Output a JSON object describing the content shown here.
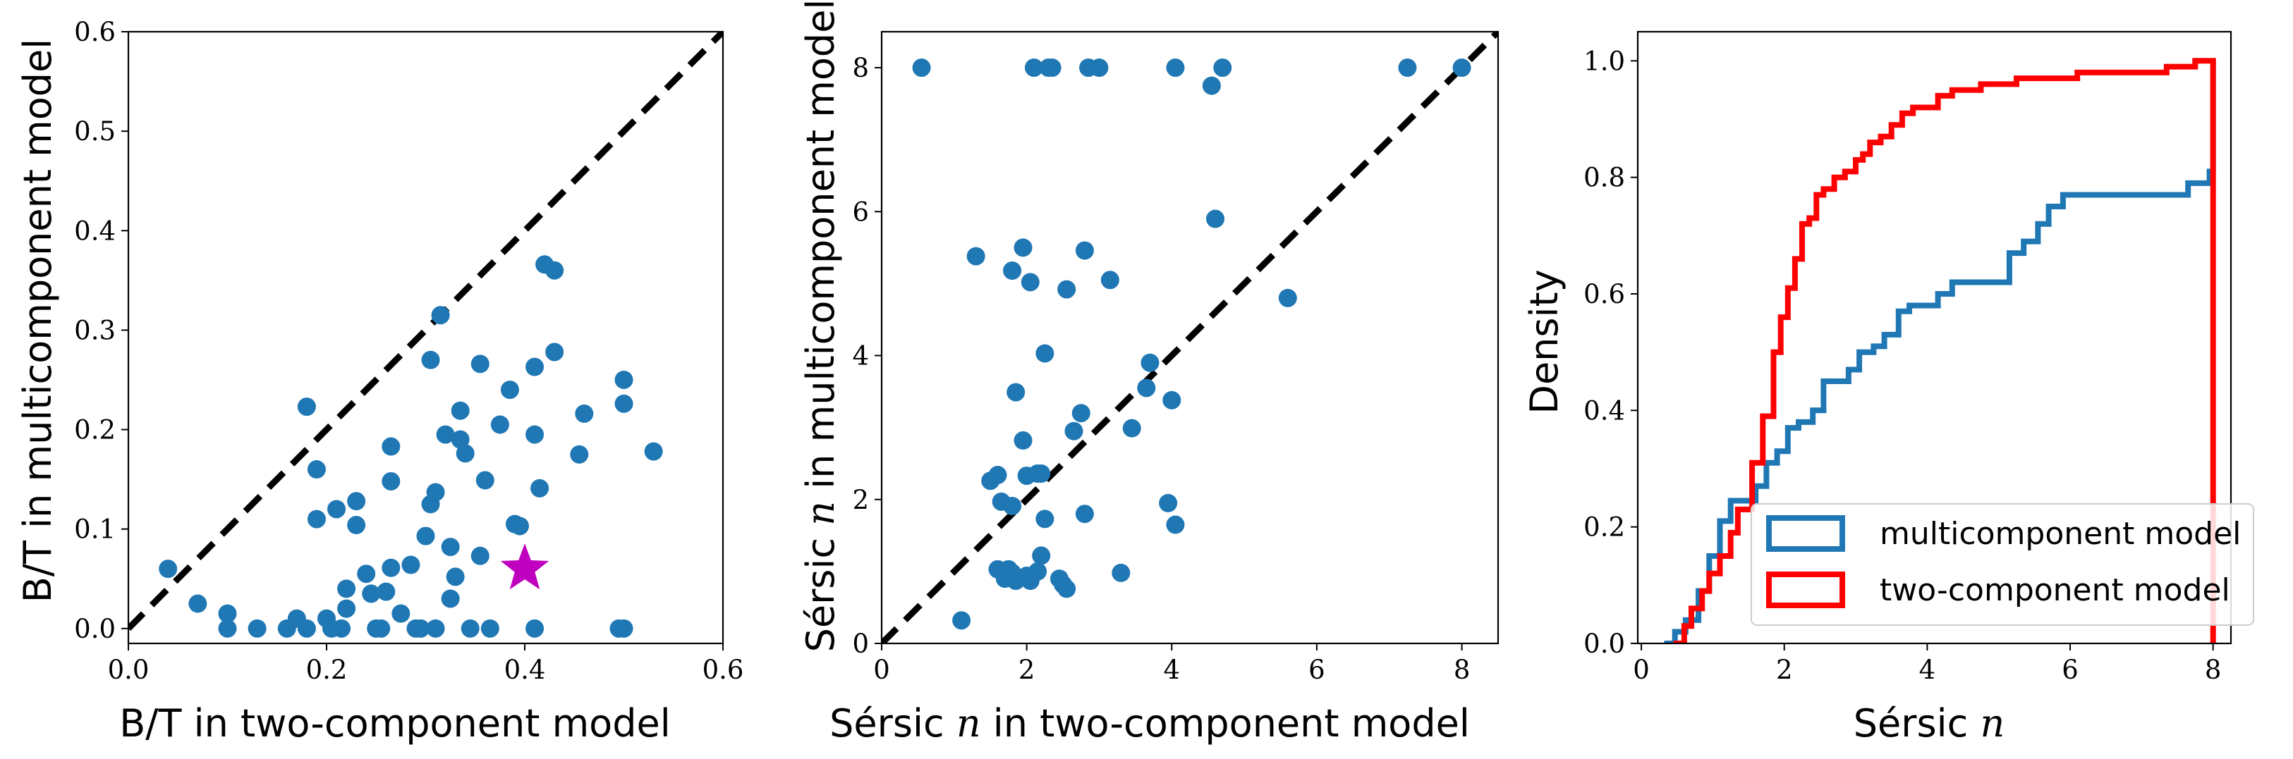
{
  "colors": {
    "point": "#1f77b4",
    "star": "#bf00bf",
    "multi": "#1f77b4",
    "two": "#ff0000",
    "identity": "#000000"
  },
  "chart_data": [
    {
      "type": "scatter",
      "xlabel": "B/T in two-component model",
      "ylabel": "B/T in multicomponent model",
      "xlim": [
        0.0,
        0.6
      ],
      "ylim": [
        -0.015,
        0.6
      ],
      "xticks": [
        "0.0",
        "0.2",
        "0.4",
        "0.6"
      ],
      "yticks": [
        "0.0",
        "0.1",
        "0.2",
        "0.3",
        "0.4",
        "0.5",
        "0.6"
      ],
      "identity_line": true,
      "series": [
        {
          "marker": "circle",
          "points": [
            [
              0.04,
              0.06
            ],
            [
              0.07,
              0.025
            ],
            [
              0.1,
              0.015
            ],
            [
              0.1,
              0.0
            ],
            [
              0.13,
              0.0
            ],
            [
              0.16,
              0.0
            ],
            [
              0.17,
              0.01
            ],
            [
              0.18,
              0.0
            ],
            [
              0.18,
              0.223
            ],
            [
              0.19,
              0.11
            ],
            [
              0.19,
              0.16
            ],
            [
              0.2,
              0.01
            ],
            [
              0.205,
              0.0
            ],
            [
              0.21,
              0.12
            ],
            [
              0.215,
              0.0
            ],
            [
              0.22,
              0.02
            ],
            [
              0.22,
              0.04
            ],
            [
              0.23,
              0.128
            ],
            [
              0.23,
              0.104
            ],
            [
              0.24,
              0.055
            ],
            [
              0.245,
              0.035
            ],
            [
              0.25,
              0.0
            ],
            [
              0.255,
              0.0
            ],
            [
              0.26,
              0.037
            ],
            [
              0.265,
              0.061
            ],
            [
              0.265,
              0.148
            ],
            [
              0.265,
              0.183
            ],
            [
              0.275,
              0.015
            ],
            [
              0.285,
              0.064
            ],
            [
              0.29,
              0.0
            ],
            [
              0.295,
              0.0
            ],
            [
              0.3,
              0.093
            ],
            [
              0.305,
              0.125
            ],
            [
              0.305,
              0.27
            ],
            [
              0.31,
              0.0
            ],
            [
              0.31,
              0.137
            ],
            [
              0.315,
              0.315
            ],
            [
              0.32,
              0.195
            ],
            [
              0.325,
              0.03
            ],
            [
              0.325,
              0.082
            ],
            [
              0.33,
              0.052
            ],
            [
              0.335,
              0.19
            ],
            [
              0.335,
              0.219
            ],
            [
              0.34,
              0.176
            ],
            [
              0.345,
              0.0
            ],
            [
              0.355,
              0.266
            ],
            [
              0.355,
              0.073
            ],
            [
              0.36,
              0.149
            ],
            [
              0.365,
              0.0
            ],
            [
              0.375,
              0.205
            ],
            [
              0.385,
              0.24
            ],
            [
              0.39,
              0.105
            ],
            [
              0.395,
              0.103
            ],
            [
              0.41,
              0.0
            ],
            [
              0.41,
              0.263
            ],
            [
              0.41,
              0.195
            ],
            [
              0.415,
              0.141
            ],
            [
              0.42,
              0.366
            ],
            [
              0.43,
              0.278
            ],
            [
              0.43,
              0.36
            ],
            [
              0.455,
              0.175
            ],
            [
              0.46,
              0.216
            ],
            [
              0.495,
              0.0
            ],
            [
              0.5,
              0.25
            ],
            [
              0.5,
              0.226
            ],
            [
              0.5,
              0.0
            ],
            [
              0.53,
              0.178
            ]
          ]
        },
        {
          "marker": "star",
          "points": [
            [
              0.4,
              0.06
            ]
          ]
        }
      ]
    },
    {
      "type": "scatter",
      "xlabel_pre": "Sérsic ",
      "xlabel_var": "n",
      "xlabel_post": " in two-component model",
      "ylabel_pre": "Sérsic ",
      "ylabel_var": "n",
      "ylabel_post": " in multicomponent model",
      "xlim": [
        0,
        8.5
      ],
      "ylim": [
        0,
        8.5
      ],
      "xticks": [
        "0",
        "2",
        "4",
        "6",
        "8"
      ],
      "yticks": [
        "0",
        "2",
        "4",
        "6",
        "8"
      ],
      "identity_line": true,
      "series": [
        {
          "marker": "circle",
          "points": [
            [
              0.55,
              8.0
            ],
            [
              2.1,
              8.0
            ],
            [
              2.3,
              8.0
            ],
            [
              2.35,
              8.0
            ],
            [
              2.85,
              8.0
            ],
            [
              3.0,
              8.0
            ],
            [
              4.05,
              8.0
            ],
            [
              4.55,
              7.75
            ],
            [
              4.7,
              8.0
            ],
            [
              7.25,
              8.0
            ],
            [
              8.0,
              8.0
            ],
            [
              1.3,
              5.38
            ],
            [
              1.8,
              5.18
            ],
            [
              1.95,
              5.5
            ],
            [
              2.05,
              5.02
            ],
            [
              2.55,
              4.92
            ],
            [
              2.8,
              5.46
            ],
            [
              3.15,
              5.05
            ],
            [
              4.6,
              5.9
            ],
            [
              5.6,
              4.8
            ],
            [
              2.25,
              4.03
            ],
            [
              1.85,
              3.49
            ],
            [
              2.75,
              3.2
            ],
            [
              2.65,
              2.95
            ],
            [
              3.45,
              2.99
            ],
            [
              3.65,
              3.55
            ],
            [
              3.7,
              3.9
            ],
            [
              4.0,
              3.38
            ],
            [
              1.5,
              2.26
            ],
            [
              1.6,
              2.34
            ],
            [
              1.65,
              1.97
            ],
            [
              1.8,
              1.91
            ],
            [
              1.95,
              2.82
            ],
            [
              2.0,
              2.33
            ],
            [
              2.15,
              2.36
            ],
            [
              2.2,
              2.36
            ],
            [
              2.25,
              1.73
            ],
            [
              2.8,
              1.8
            ],
            [
              1.1,
              0.32
            ],
            [
              1.6,
              1.03
            ],
            [
              1.7,
              0.9
            ],
            [
              1.75,
              1.03
            ],
            [
              1.8,
              0.98
            ],
            [
              1.85,
              0.87
            ],
            [
              2.0,
              0.94
            ],
            [
              2.05,
              0.87
            ],
            [
              2.15,
              1.0
            ],
            [
              2.2,
              1.22
            ],
            [
              2.45,
              0.9
            ],
            [
              2.5,
              0.82
            ],
            [
              2.55,
              0.76
            ],
            [
              3.3,
              0.98
            ],
            [
              3.95,
              1.95
            ],
            [
              4.05,
              1.65
            ]
          ]
        }
      ]
    },
    {
      "type": "line",
      "subtype": "cumulative step histogram",
      "xlabel_pre": "Sérsic ",
      "xlabel_var": "n",
      "ylabel": "Density",
      "xlim": [
        -0.05,
        8.25
      ],
      "ylim": [
        0,
        1.05
      ],
      "xticks": [
        "0",
        "2",
        "4",
        "6",
        "8"
      ],
      "yticks": [
        "0.0",
        "0.2",
        "0.4",
        "0.6",
        "0.8",
        "1.0"
      ],
      "legend": {
        "placement": "lower-right"
      },
      "series": [
        {
          "name": "multicomponent model",
          "color": "#1f77b4",
          "x": [
            0.32,
            0.47,
            0.62,
            0.8,
            0.95,
            1.1,
            1.25,
            1.45,
            1.6,
            1.75,
            1.9,
            2.05,
            2.2,
            2.4,
            2.55,
            2.75,
            2.9,
            3.05,
            3.25,
            3.4,
            3.6,
            3.75,
            3.95,
            4.15,
            4.35,
            4.6,
            4.75,
            4.95,
            5.15,
            5.35,
            5.55,
            5.7,
            5.9,
            6.5,
            7.65,
            7.8,
            7.95,
            8.0
          ],
          "y": [
            0.0,
            0.02,
            0.04,
            0.09,
            0.15,
            0.21,
            0.245,
            0.245,
            0.27,
            0.31,
            0.33,
            0.37,
            0.38,
            0.4,
            0.45,
            0.45,
            0.47,
            0.5,
            0.51,
            0.53,
            0.57,
            0.58,
            0.58,
            0.6,
            0.62,
            0.62,
            0.62,
            0.62,
            0.67,
            0.69,
            0.72,
            0.75,
            0.77,
            0.77,
            0.79,
            0.79,
            0.81,
            1.0
          ]
        },
        {
          "name": "two-component model",
          "color": "#ff0000",
          "x": [
            0.45,
            0.6,
            0.7,
            0.85,
            0.95,
            1.1,
            1.25,
            1.35,
            1.55,
            1.7,
            1.85,
            1.95,
            2.05,
            2.15,
            2.25,
            2.35,
            2.45,
            2.55,
            2.7,
            2.85,
            3.0,
            3.1,
            3.2,
            3.35,
            3.5,
            3.65,
            3.8,
            3.95,
            4.15,
            4.35,
            4.55,
            4.75,
            5.0,
            5.25,
            5.5,
            5.8,
            6.1,
            6.4,
            6.75,
            7.05,
            7.35,
            7.6,
            7.75,
            7.85,
            8.0
          ],
          "y": [
            0.0,
            0.03,
            0.06,
            0.09,
            0.12,
            0.15,
            0.19,
            0.23,
            0.31,
            0.39,
            0.5,
            0.56,
            0.61,
            0.66,
            0.72,
            0.73,
            0.77,
            0.78,
            0.8,
            0.81,
            0.83,
            0.84,
            0.86,
            0.87,
            0.89,
            0.91,
            0.92,
            0.92,
            0.94,
            0.95,
            0.95,
            0.96,
            0.96,
            0.97,
            0.97,
            0.97,
            0.98,
            0.98,
            0.98,
            0.98,
            0.99,
            0.99,
            1.0,
            1.0,
            0.0
          ]
        }
      ]
    }
  ]
}
